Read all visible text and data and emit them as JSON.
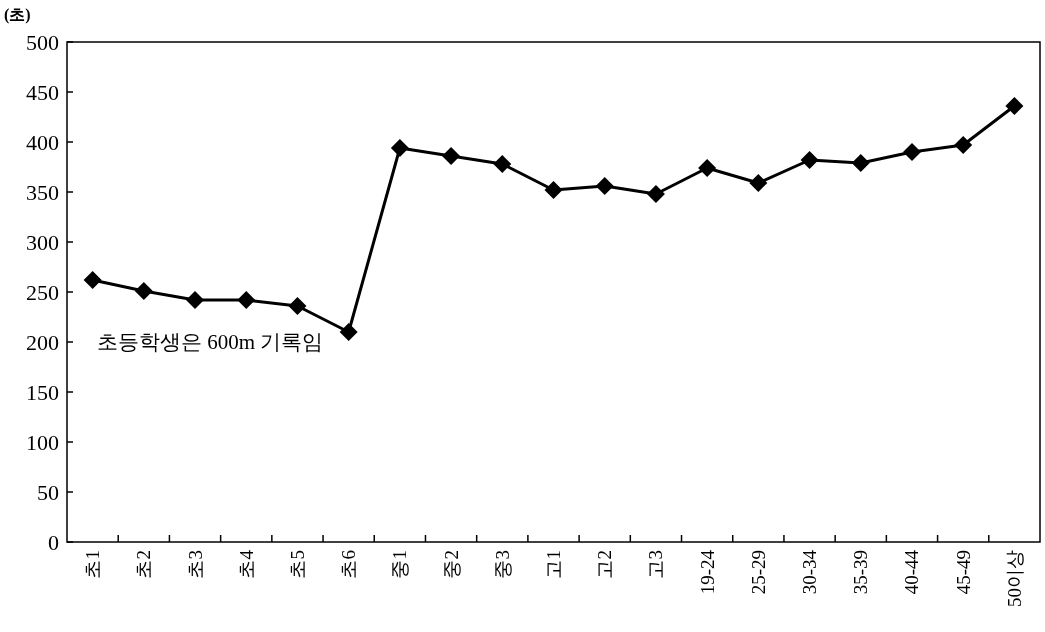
{
  "chart_data": {
    "type": "line",
    "ylabel": "(초)",
    "categories": [
      "초1",
      "초2",
      "초3",
      "초4",
      "초5",
      "초6",
      "중1",
      "중2",
      "중3",
      "고1",
      "고2",
      "고3",
      "19-24",
      "25-29",
      "30-34",
      "35-39",
      "40-44",
      "45-49",
      "50이상"
    ],
    "series": [
      {
        "color": "#000000",
        "values": [
          262,
          251,
          242,
          242,
          236,
          210,
          394,
          386,
          378,
          352,
          356,
          348,
          374,
          359,
          382,
          379,
          390,
          397,
          436
        ]
      }
    ],
    "ylim": [
      0,
      500
    ],
    "yticks": [
      0,
      50,
      100,
      150,
      200,
      250,
      300,
      350,
      400,
      450,
      500
    ],
    "marker": "diamond",
    "line_style": "solid",
    "annotations": [
      "초등학생은 600m 기록임"
    ]
  }
}
